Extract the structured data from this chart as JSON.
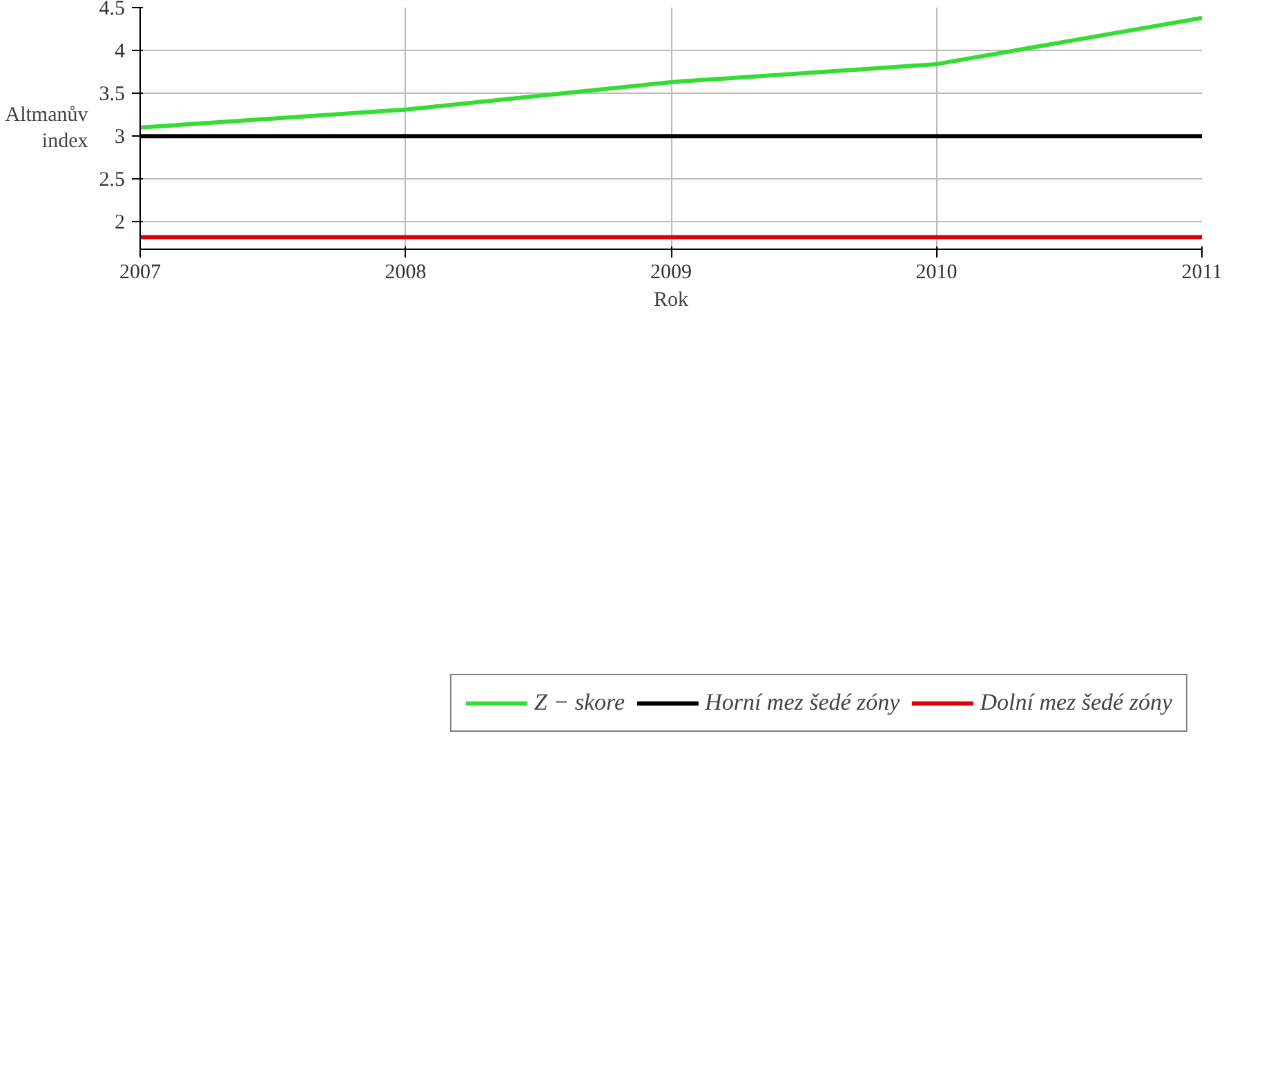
{
  "chart_data": {
    "type": "line",
    "xlabel": "Rok",
    "ylabel": "Altmanův\nindex",
    "x": [
      2007,
      2008,
      2009,
      2010,
      2011
    ],
    "series": [
      {
        "name": "Z − skore",
        "color": "#33dd33",
        "values": [
          3.1,
          3.31,
          3.63,
          3.84,
          4.38
        ]
      },
      {
        "name": "Horní mez šedé zóny",
        "color": "#000000",
        "values": [
          3.0,
          3.0,
          3.0,
          3.0,
          3.0
        ]
      },
      {
        "name": "Dolní mez šedé zóny",
        "color": "#dd0000",
        "values": [
          1.82,
          1.82,
          1.82,
          1.82,
          1.82
        ]
      }
    ],
    "xlim": [
      2007,
      2011
    ],
    "xticks": [
      2007,
      2008,
      2009,
      2010,
      2011
    ],
    "ylim": [
      1.68,
      4.5
    ],
    "yticks": [
      2,
      2.5,
      3,
      3.5,
      4,
      4.5
    ],
    "grid": true,
    "legend": "bottom",
    "line_style": "solid",
    "marker": "none"
  }
}
